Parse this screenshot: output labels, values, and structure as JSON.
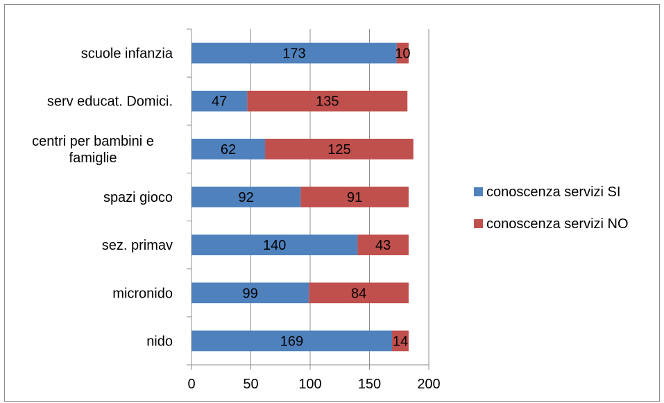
{
  "chart_data": {
    "type": "bar",
    "orientation": "horizontal",
    "stacked": true,
    "categories": [
      "scuole infanzia",
      "serv educat. Domici.",
      "centri per bambini  e famiglie",
      "spazi gioco",
      "sez. primav",
      "micronido",
      "nido"
    ],
    "series": [
      {
        "name": "conoscenza servizi SI",
        "color": "#4F81BD",
        "values": [
          173,
          47,
          62,
          92,
          140,
          99,
          169
        ]
      },
      {
        "name": "conoscenza servizi NO",
        "color": "#C0504D",
        "values": [
          10,
          135,
          125,
          91,
          43,
          84,
          14
        ]
      }
    ],
    "xlim": [
      0,
      200
    ],
    "x_ticks": [
      0,
      50,
      100,
      150,
      200
    ],
    "grid": true,
    "legend_position": "right"
  }
}
